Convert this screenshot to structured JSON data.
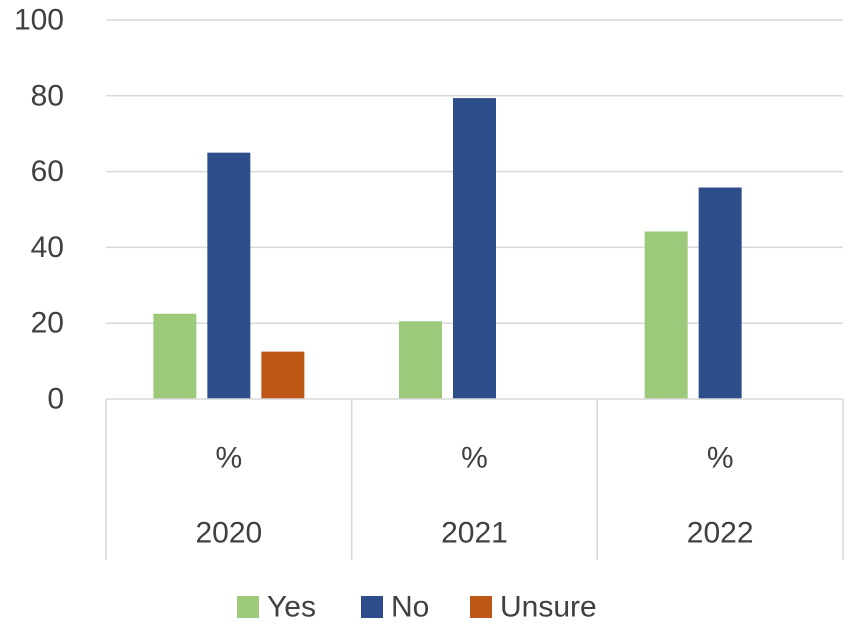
{
  "chart_data": {
    "type": "bar",
    "categories": [
      {
        "level1": "%",
        "level2": "2020"
      },
      {
        "level1": "%",
        "level2": "2021"
      },
      {
        "level1": "%",
        "level2": "2022"
      }
    ],
    "series": [
      {
        "name": "Yes",
        "values": [
          22.5,
          20.5,
          44.2
        ],
        "color": "#9DC97A"
      },
      {
        "name": "No",
        "values": [
          65.0,
          79.4,
          55.8
        ],
        "color": "#2E4D8B"
      },
      {
        "name": "Unsure",
        "values": [
          12.5,
          null,
          null
        ],
        "color": "#BE5716"
      }
    ],
    "yticks": [
      "0",
      "20",
      "40",
      "60",
      "80",
      "100"
    ],
    "ylim": [
      0,
      100
    ],
    "grid": true,
    "legend": "bottom",
    "title": "",
    "xlabel": "",
    "ylabel": ""
  }
}
